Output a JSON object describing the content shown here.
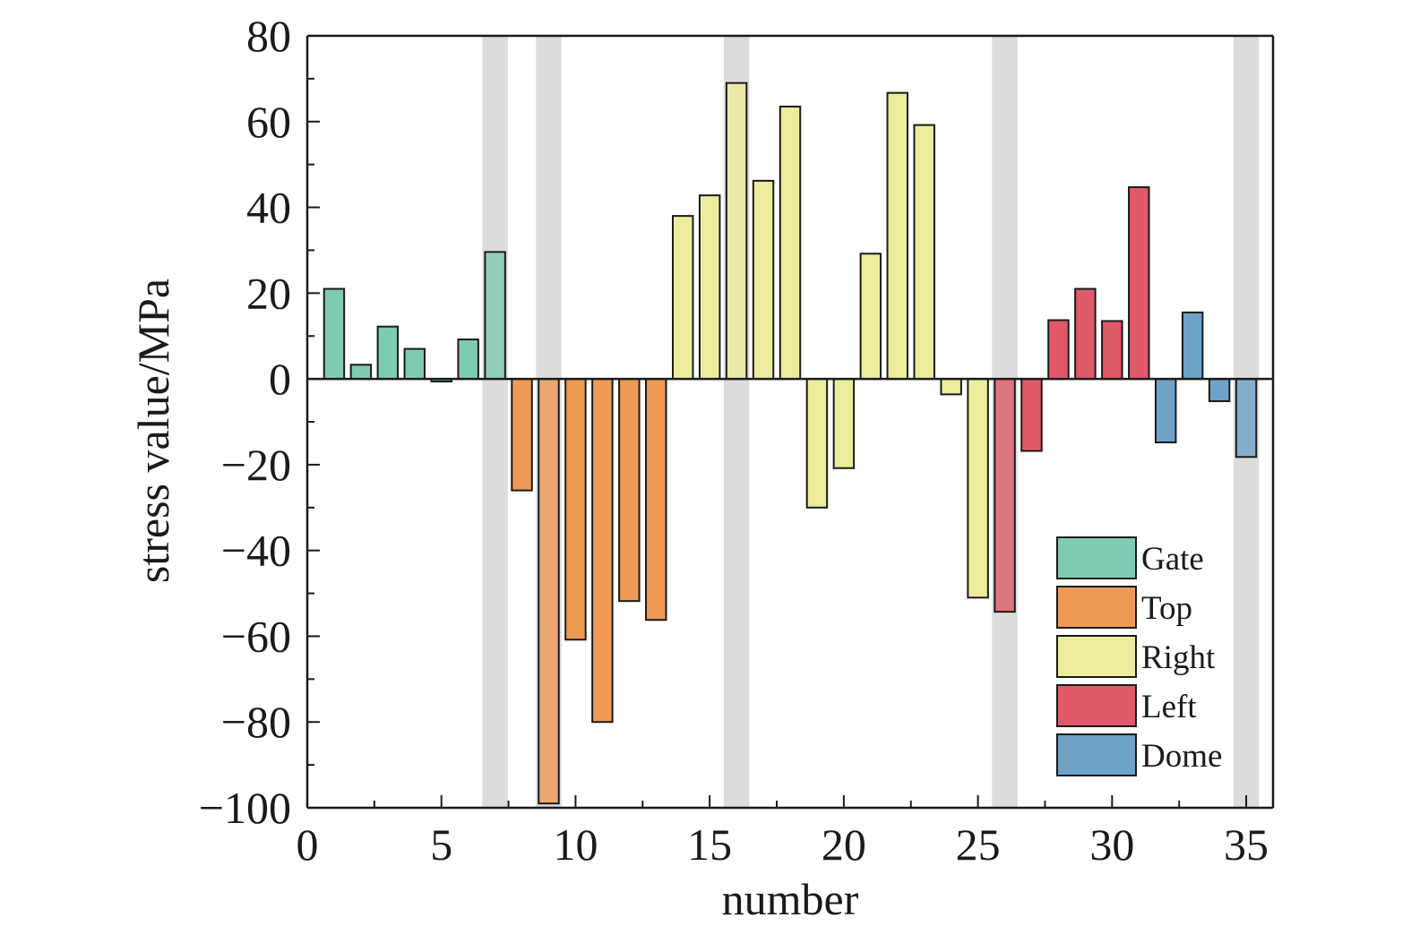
{
  "chart_data": {
    "type": "bar",
    "xlabel": "number",
    "ylabel": "stress value/MPa",
    "xlim": [
      0,
      36
    ],
    "ylim": [
      -100,
      80
    ],
    "x_ticks": [
      0,
      5,
      10,
      15,
      20,
      25,
      30,
      35
    ],
    "y_ticks": [
      80,
      60,
      40,
      20,
      0,
      -20,
      -40,
      -60,
      -80,
      -100
    ],
    "y_tick_labels": [
      "80",
      "60",
      "40",
      "20",
      "0",
      "−20",
      "−40",
      "−60",
      "−80",
      "−100"
    ],
    "highlighted_numbers": [
      7,
      9,
      16,
      26,
      35
    ],
    "highlight_color": "#dcdcdc",
    "grid": false,
    "legend_position": "bottom-right",
    "series": [
      {
        "name": "Gate",
        "color": "#7ecbb4",
        "x": [
          1,
          2,
          3,
          4,
          5,
          6,
          7
        ],
        "values": [
          21,
          3.3,
          12.2,
          7,
          -0.6,
          9.2,
          29.6
        ]
      },
      {
        "name": "Top",
        "color": "#ee9a55",
        "x": [
          8,
          9,
          10,
          11,
          12,
          13
        ],
        "values": [
          -26,
          -99,
          -60.8,
          -80,
          -51.8,
          -56.2
        ]
      },
      {
        "name": "Right",
        "color": "#edec9c",
        "x": [
          14,
          15,
          16,
          17,
          18,
          19,
          20,
          21,
          22,
          23,
          24,
          25
        ],
        "values": [
          38,
          42.8,
          69,
          46.2,
          63.5,
          -30,
          -20.8,
          29.2,
          66.7,
          59.2,
          -3.6,
          -51
        ]
      },
      {
        "name": "Left",
        "color": "#e05a69",
        "x": [
          26,
          27,
          28,
          29,
          30,
          31
        ],
        "values": [
          -54.3,
          -16.8,
          13.7,
          21,
          13.5,
          44.7
        ]
      },
      {
        "name": "Dome",
        "color": "#6ea2c7",
        "x": [
          32,
          33,
          34,
          35
        ],
        "values": [
          -14.8,
          15.5,
          -5.2,
          -18.2
        ]
      }
    ]
  }
}
